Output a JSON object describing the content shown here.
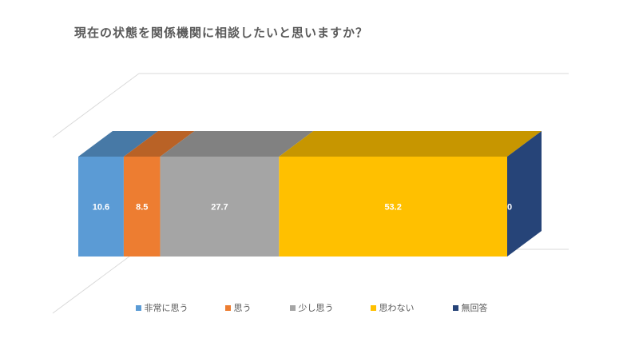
{
  "chart_data": {
    "type": "bar",
    "subtype": "100% stacked horizontal bar (3D)",
    "title": "現在の状態を関係機関に相談したいと思いますか？",
    "categories": [
      ""
    ],
    "series": [
      {
        "name": "非常に思う",
        "values": [
          10.6
        ],
        "color": "#5B9BD5"
      },
      {
        "name": "思う",
        "values": [
          8.5
        ],
        "color": "#ED7D31"
      },
      {
        "name": "少し思う",
        "values": [
          27.7
        ],
        "color": "#A5A5A5"
      },
      {
        "name": "思わない",
        "values": [
          53.2
        ],
        "color": "#FFC000"
      },
      {
        "name": "無回答",
        "values": [
          0
        ],
        "color": "#264478"
      }
    ],
    "data_labels": [
      "10.6",
      "8.5",
      "27.7",
      "53.2",
      "0"
    ],
    "xlim": [
      0,
      100
    ],
    "legend_position": "bottom",
    "grid": false
  }
}
